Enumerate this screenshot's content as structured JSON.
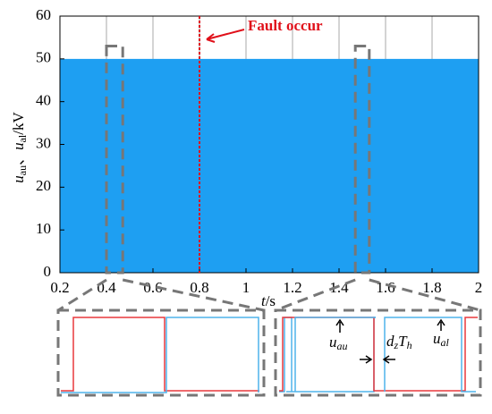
{
  "chart_data": {
    "type": "area",
    "annotation": "Fault occur",
    "fault_x": 0.8,
    "zoom_regions": [
      [
        0.4,
        0.47
      ],
      [
        1.47,
        1.53
      ]
    ],
    "zoom_top": 53,
    "ylabel": [
      "u",
      "au",
      "、",
      "u",
      "al",
      "/kV"
    ],
    "xlabel": [
      "t",
      "/s"
    ],
    "inset_labels": {
      "uau": [
        "u",
        "au"
      ],
      "ual": [
        "u",
        "al"
      ],
      "dz": [
        "d",
        "z",
        "T",
        "h"
      ]
    },
    "x": [
      0.2,
      2
    ],
    "series": [
      {
        "color": "#1e9ff2",
        "values": [
          50,
          50
        ]
      }
    ],
    "xlim": [
      0.2,
      2
    ],
    "xticks": [
      0.2,
      0.4,
      0.6,
      0.8,
      1,
      1.2,
      1.4,
      1.6,
      1.8,
      2
    ],
    "ylim": [
      0,
      60
    ],
    "yticks": [
      0,
      10,
      20,
      30,
      40,
      50,
      60
    ],
    "grid": true
  }
}
